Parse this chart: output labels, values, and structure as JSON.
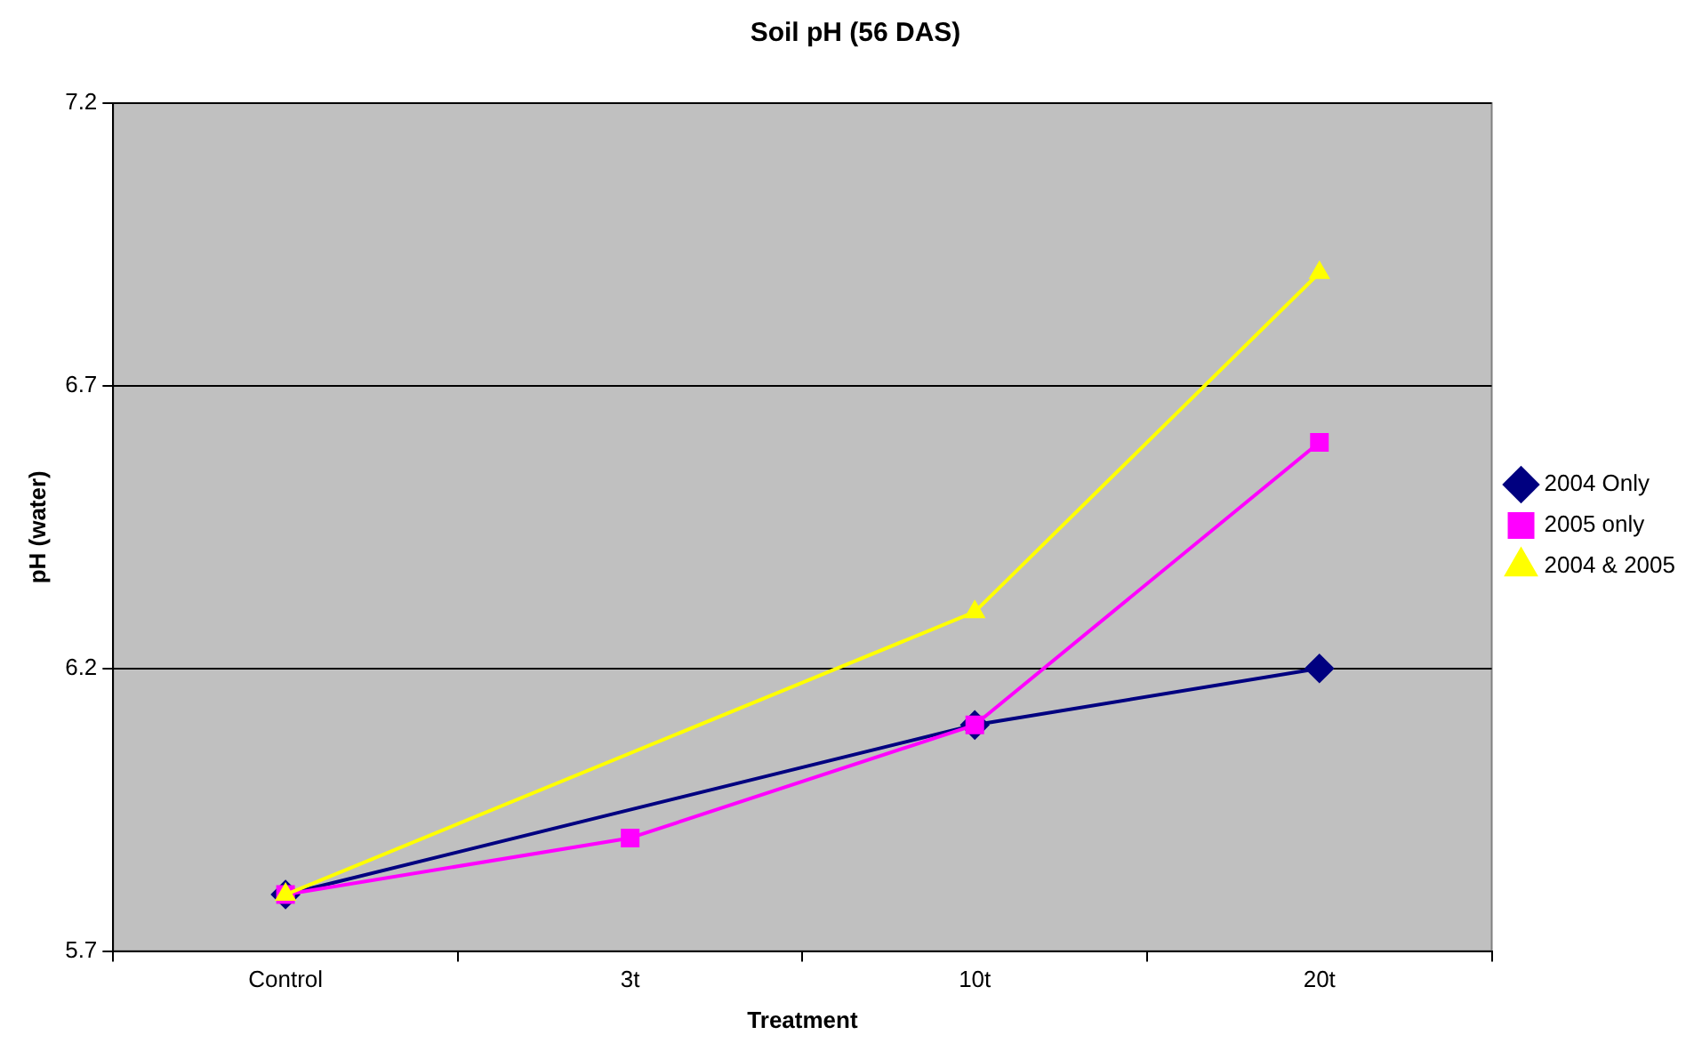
{
  "chart_data": {
    "type": "line",
    "title": "Soil pH (56 DAS)",
    "xlabel": "Treatment",
    "ylabel": "pH (water)",
    "categories": [
      "Control",
      "3t",
      "10t",
      "20t"
    ],
    "series": [
      {
        "name": "2004 Only",
        "color": "#000080",
        "marker": "diamond",
        "values": [
          5.8,
          null,
          6.1,
          6.2
        ]
      },
      {
        "name": "2005 only",
        "color": "#ff00ff",
        "marker": "square",
        "values": [
          5.8,
          5.9,
          6.1,
          6.6
        ]
      },
      {
        "name": "2004 & 2005",
        "color": "#ffff00",
        "marker": "triangle",
        "values": [
          5.8,
          null,
          6.3,
          6.9
        ]
      }
    ],
    "ylim": [
      5.7,
      7.2
    ],
    "yticks": [
      5.7,
      6.2,
      6.7,
      7.2
    ],
    "grid": "y",
    "legend": "right"
  }
}
